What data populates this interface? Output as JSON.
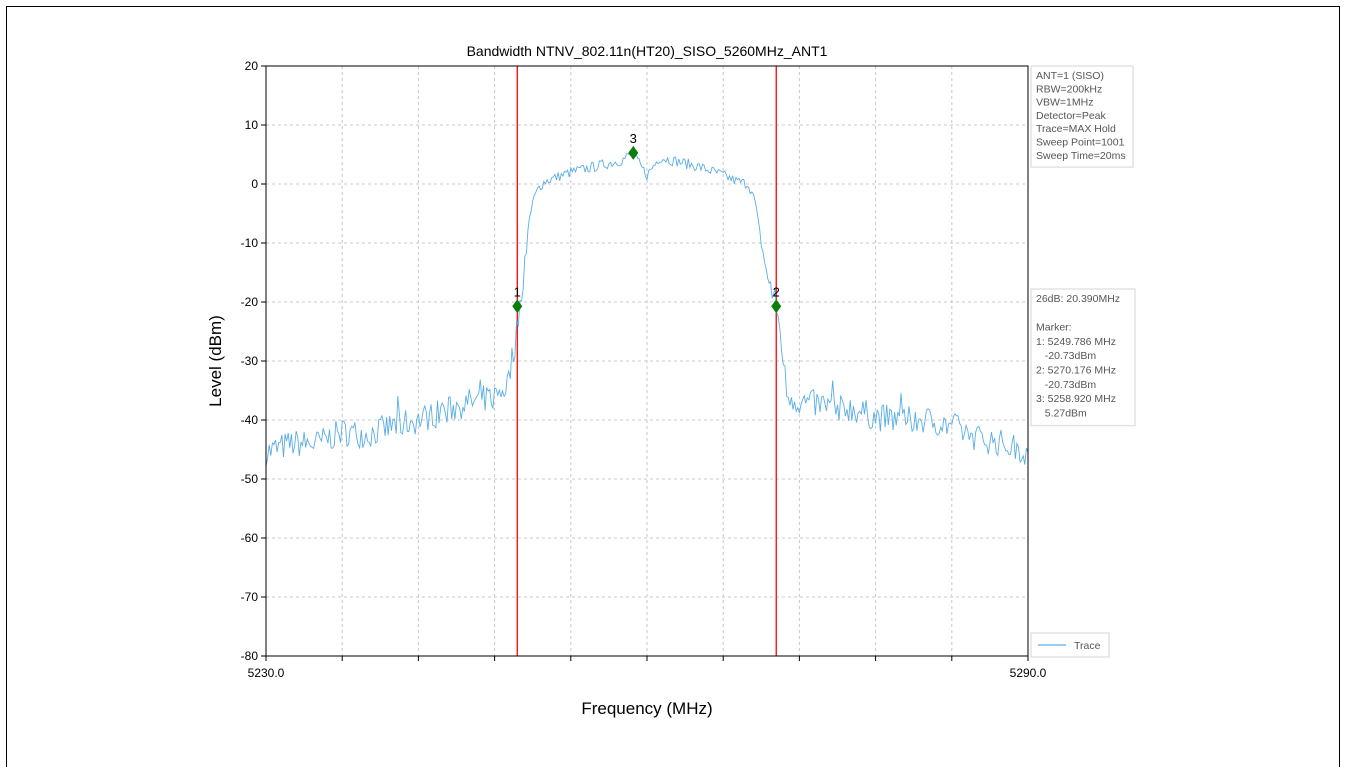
{
  "chart_data": {
    "type": "line",
    "title": "Bandwidth NTNV_802.11n(HT20)_SISO_5260MHz_ANT1",
    "xlabel": "Frequency (MHz)",
    "ylabel": "Level (dBm)",
    "xlim": [
      5230.0,
      5290.0
    ],
    "ylim": [
      -80,
      20
    ],
    "x_tick_labels": [
      "5230.0",
      "5290.0"
    ],
    "y_ticks": [
      20,
      10,
      0,
      -10,
      -20,
      -30,
      -40,
      -50,
      -60,
      -70,
      -80
    ],
    "x_minor_ticks": [
      5236,
      5242,
      5248,
      5254,
      5260,
      5266,
      5272,
      5278,
      5284
    ],
    "grid": true,
    "series": [
      {
        "name": "Trace",
        "color": "#5aaee6",
        "x": [
          5230,
          5232,
          5234,
          5236,
          5238,
          5240,
          5242,
          5244,
          5246,
          5248,
          5249,
          5249.6,
          5250,
          5250.5,
          5251,
          5251.5,
          5252,
          5254,
          5256,
          5258,
          5258.9,
          5259.5,
          5260,
          5261,
          5262,
          5264,
          5266,
          5267,
          5268,
          5268.5,
          5269,
          5269.5,
          5270.2,
          5270.6,
          5271,
          5272,
          5274,
          5276,
          5278,
          5280,
          5282,
          5284,
          5286,
          5288,
          5290
        ],
        "y": [
          -45.5,
          -44,
          -44,
          -42,
          -42.5,
          -41,
          -40,
          -38.5,
          -37,
          -36,
          -34,
          -27,
          -20.7,
          -10,
          -3,
          -0.5,
          0.5,
          2,
          3,
          4,
          5.27,
          3,
          1.5,
          4.5,
          4,
          3,
          1.5,
          0.5,
          0,
          -3,
          -10,
          -16,
          -20.73,
          -27,
          -35.5,
          -37,
          -37.5,
          -38,
          -39.5,
          -40,
          -40,
          -41,
          -43,
          -44,
          -45.5
        ]
      }
    ],
    "vlines": [
      {
        "x": 5249.786,
        "color": "#ff0000"
      },
      {
        "x": 5270.176,
        "color": "#ff0000"
      }
    ],
    "markers": [
      {
        "label": "1",
        "x": 5249.786,
        "y": -20.73,
        "color": "#0a7d0a"
      },
      {
        "label": "2",
        "x": 5270.176,
        "y": -20.73,
        "color": "#0a7d0a"
      },
      {
        "label": "3",
        "x": 5258.92,
        "y": 5.27,
        "color": "#0a7d0a"
      }
    ],
    "info_box": {
      "lines": [
        "ANT=1 (SISO)",
        "RBW=200kHz",
        "VBW=1MHz",
        "Detector=Peak",
        "Trace=MAX Hold",
        "Sweep Point=1001",
        "Sweep Time=20ms"
      ]
    },
    "result_box": {
      "lines": [
        "26dB: 20.390MHz",
        "",
        "Marker:",
        "1: 5249.786 MHz",
        "   -20.73dBm",
        "2: 5270.176 MHz",
        "   -20.73dBm",
        "3: 5258.920 MHz",
        "   5.27dBm"
      ]
    },
    "legend": {
      "placement": "bottom-right",
      "entries": [
        {
          "label": "Trace",
          "color": "#5aaee6"
        }
      ]
    }
  }
}
